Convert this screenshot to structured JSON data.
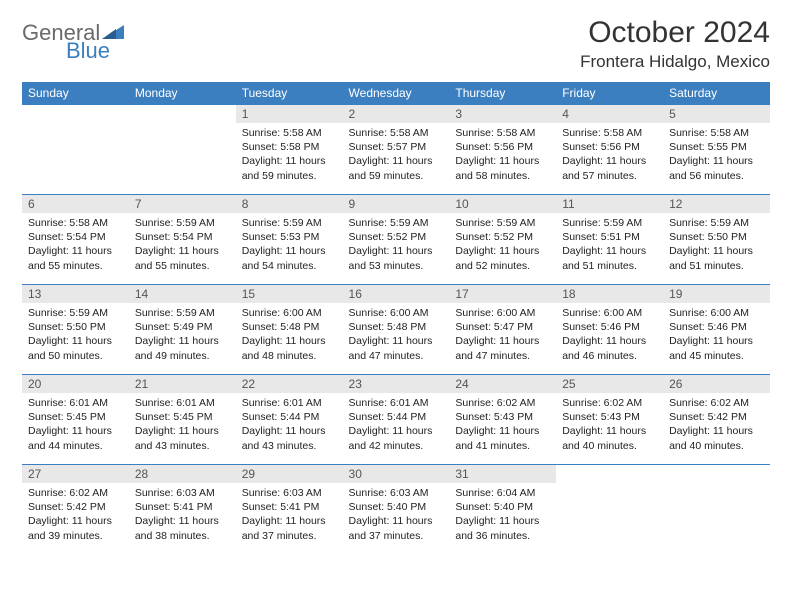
{
  "logo": {
    "general": "General",
    "blue": "Blue"
  },
  "header": {
    "month_title": "October 2024",
    "location": "Frontera Hidalgo, Mexico"
  },
  "theme": {
    "accent": "#3c7fc0",
    "daynum_bg": "#e8e8e8",
    "text": "#333333",
    "cell_text": "#222222",
    "logo_gray": "#6a6a6a"
  },
  "daynames": [
    "Sunday",
    "Monday",
    "Tuesday",
    "Wednesday",
    "Thursday",
    "Friday",
    "Saturday"
  ],
  "weeks": [
    [
      null,
      null,
      {
        "n": "1",
        "sr": "Sunrise: 5:58 AM",
        "ss": "Sunset: 5:58 PM",
        "dl1": "Daylight: 11 hours",
        "dl2": "and 59 minutes."
      },
      {
        "n": "2",
        "sr": "Sunrise: 5:58 AM",
        "ss": "Sunset: 5:57 PM",
        "dl1": "Daylight: 11 hours",
        "dl2": "and 59 minutes."
      },
      {
        "n": "3",
        "sr": "Sunrise: 5:58 AM",
        "ss": "Sunset: 5:56 PM",
        "dl1": "Daylight: 11 hours",
        "dl2": "and 58 minutes."
      },
      {
        "n": "4",
        "sr": "Sunrise: 5:58 AM",
        "ss": "Sunset: 5:56 PM",
        "dl1": "Daylight: 11 hours",
        "dl2": "and 57 minutes."
      },
      {
        "n": "5",
        "sr": "Sunrise: 5:58 AM",
        "ss": "Sunset: 5:55 PM",
        "dl1": "Daylight: 11 hours",
        "dl2": "and 56 minutes."
      }
    ],
    [
      {
        "n": "6",
        "sr": "Sunrise: 5:58 AM",
        "ss": "Sunset: 5:54 PM",
        "dl1": "Daylight: 11 hours",
        "dl2": "and 55 minutes."
      },
      {
        "n": "7",
        "sr": "Sunrise: 5:59 AM",
        "ss": "Sunset: 5:54 PM",
        "dl1": "Daylight: 11 hours",
        "dl2": "and 55 minutes."
      },
      {
        "n": "8",
        "sr": "Sunrise: 5:59 AM",
        "ss": "Sunset: 5:53 PM",
        "dl1": "Daylight: 11 hours",
        "dl2": "and 54 minutes."
      },
      {
        "n": "9",
        "sr": "Sunrise: 5:59 AM",
        "ss": "Sunset: 5:52 PM",
        "dl1": "Daylight: 11 hours",
        "dl2": "and 53 minutes."
      },
      {
        "n": "10",
        "sr": "Sunrise: 5:59 AM",
        "ss": "Sunset: 5:52 PM",
        "dl1": "Daylight: 11 hours",
        "dl2": "and 52 minutes."
      },
      {
        "n": "11",
        "sr": "Sunrise: 5:59 AM",
        "ss": "Sunset: 5:51 PM",
        "dl1": "Daylight: 11 hours",
        "dl2": "and 51 minutes."
      },
      {
        "n": "12",
        "sr": "Sunrise: 5:59 AM",
        "ss": "Sunset: 5:50 PM",
        "dl1": "Daylight: 11 hours",
        "dl2": "and 51 minutes."
      }
    ],
    [
      {
        "n": "13",
        "sr": "Sunrise: 5:59 AM",
        "ss": "Sunset: 5:50 PM",
        "dl1": "Daylight: 11 hours",
        "dl2": "and 50 minutes."
      },
      {
        "n": "14",
        "sr": "Sunrise: 5:59 AM",
        "ss": "Sunset: 5:49 PM",
        "dl1": "Daylight: 11 hours",
        "dl2": "and 49 minutes."
      },
      {
        "n": "15",
        "sr": "Sunrise: 6:00 AM",
        "ss": "Sunset: 5:48 PM",
        "dl1": "Daylight: 11 hours",
        "dl2": "and 48 minutes."
      },
      {
        "n": "16",
        "sr": "Sunrise: 6:00 AM",
        "ss": "Sunset: 5:48 PM",
        "dl1": "Daylight: 11 hours",
        "dl2": "and 47 minutes."
      },
      {
        "n": "17",
        "sr": "Sunrise: 6:00 AM",
        "ss": "Sunset: 5:47 PM",
        "dl1": "Daylight: 11 hours",
        "dl2": "and 47 minutes."
      },
      {
        "n": "18",
        "sr": "Sunrise: 6:00 AM",
        "ss": "Sunset: 5:46 PM",
        "dl1": "Daylight: 11 hours",
        "dl2": "and 46 minutes."
      },
      {
        "n": "19",
        "sr": "Sunrise: 6:00 AM",
        "ss": "Sunset: 5:46 PM",
        "dl1": "Daylight: 11 hours",
        "dl2": "and 45 minutes."
      }
    ],
    [
      {
        "n": "20",
        "sr": "Sunrise: 6:01 AM",
        "ss": "Sunset: 5:45 PM",
        "dl1": "Daylight: 11 hours",
        "dl2": "and 44 minutes."
      },
      {
        "n": "21",
        "sr": "Sunrise: 6:01 AM",
        "ss": "Sunset: 5:45 PM",
        "dl1": "Daylight: 11 hours",
        "dl2": "and 43 minutes."
      },
      {
        "n": "22",
        "sr": "Sunrise: 6:01 AM",
        "ss": "Sunset: 5:44 PM",
        "dl1": "Daylight: 11 hours",
        "dl2": "and 43 minutes."
      },
      {
        "n": "23",
        "sr": "Sunrise: 6:01 AM",
        "ss": "Sunset: 5:44 PM",
        "dl1": "Daylight: 11 hours",
        "dl2": "and 42 minutes."
      },
      {
        "n": "24",
        "sr": "Sunrise: 6:02 AM",
        "ss": "Sunset: 5:43 PM",
        "dl1": "Daylight: 11 hours",
        "dl2": "and 41 minutes."
      },
      {
        "n": "25",
        "sr": "Sunrise: 6:02 AM",
        "ss": "Sunset: 5:43 PM",
        "dl1": "Daylight: 11 hours",
        "dl2": "and 40 minutes."
      },
      {
        "n": "26",
        "sr": "Sunrise: 6:02 AM",
        "ss": "Sunset: 5:42 PM",
        "dl1": "Daylight: 11 hours",
        "dl2": "and 40 minutes."
      }
    ],
    [
      {
        "n": "27",
        "sr": "Sunrise: 6:02 AM",
        "ss": "Sunset: 5:42 PM",
        "dl1": "Daylight: 11 hours",
        "dl2": "and 39 minutes."
      },
      {
        "n": "28",
        "sr": "Sunrise: 6:03 AM",
        "ss": "Sunset: 5:41 PM",
        "dl1": "Daylight: 11 hours",
        "dl2": "and 38 minutes."
      },
      {
        "n": "29",
        "sr": "Sunrise: 6:03 AM",
        "ss": "Sunset: 5:41 PM",
        "dl1": "Daylight: 11 hours",
        "dl2": "and 37 minutes."
      },
      {
        "n": "30",
        "sr": "Sunrise: 6:03 AM",
        "ss": "Sunset: 5:40 PM",
        "dl1": "Daylight: 11 hours",
        "dl2": "and 37 minutes."
      },
      {
        "n": "31",
        "sr": "Sunrise: 6:04 AM",
        "ss": "Sunset: 5:40 PM",
        "dl1": "Daylight: 11 hours",
        "dl2": "and 36 minutes."
      },
      null,
      null
    ]
  ]
}
